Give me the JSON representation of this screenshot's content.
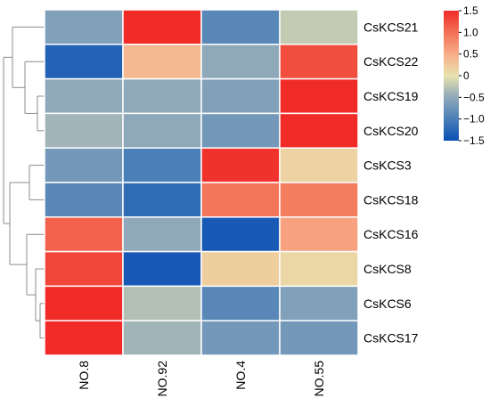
{
  "chart_data": {
    "type": "heatmap",
    "title": "",
    "xlabel": "",
    "ylabel": "",
    "columns": [
      "NO.8",
      "NO.92",
      "NO.4",
      "NO.55"
    ],
    "rows": [
      "CsKCS21",
      "CsKCS22",
      "CsKCS19",
      "CsKCS20",
      "CsKCS3",
      "CsKCS18",
      "CsKCS16",
      "CsKCS8",
      "CsKCS6",
      "CsKCS17"
    ],
    "values": [
      [
        -0.6,
        1.5,
        -0.9,
        -0.2
      ],
      [
        -1.3,
        0.4,
        -0.5,
        1.25
      ],
      [
        -0.5,
        -0.5,
        -0.6,
        1.5
      ],
      [
        -0.4,
        -0.5,
        -0.7,
        1.5
      ],
      [
        -0.7,
        -1.0,
        1.45,
        0.15
      ],
      [
        -0.9,
        -1.2,
        0.95,
        0.9
      ],
      [
        1.1,
        -0.5,
        -1.4,
        0.6
      ],
      [
        1.3,
        -1.4,
        0.2,
        0.1
      ],
      [
        1.5,
        -0.3,
        -0.9,
        -0.6
      ],
      [
        1.5,
        -0.4,
        -0.7,
        -0.7
      ]
    ],
    "colorbar": {
      "range": [
        -1.5,
        1.5
      ],
      "ticks": [
        "1.5",
        "1.0",
        "0.5",
        "0",
        "−0.5",
        "−1.0",
        "−1.5"
      ],
      "tick_values": [
        1.5,
        1.0,
        0.5,
        0,
        -0.5,
        -1.0,
        -1.5
      ],
      "colors": {
        "low": "#0a4fb4",
        "mid": "#e8e2ae",
        "high": "#f02b28"
      },
      "placement": "top-right"
    },
    "dendrogram": "rows, left side",
    "colors": {
      "grid": "#ffffff",
      "tree": "#8c8c8c"
    }
  }
}
